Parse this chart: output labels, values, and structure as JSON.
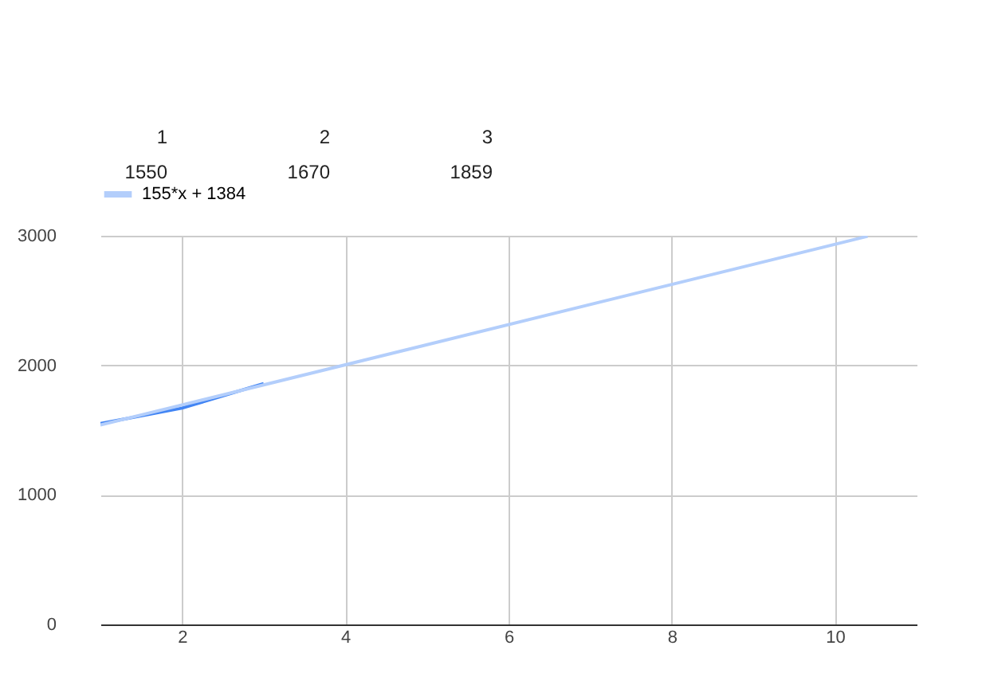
{
  "chart_data": {
    "type": "line",
    "annotations": [
      "1",
      "2",
      "3",
      "1550",
      "1670",
      "1859"
    ],
    "series": [
      {
        "color": "#4285f4",
        "x": [
          1,
          2,
          3
        ],
        "values": [
          1550,
          1670,
          1859
        ]
      },
      {
        "name": "155*x + 1384",
        "color": "#b3cefb",
        "x": [
          1,
          10.4
        ],
        "values": [
          1539,
          2996
        ]
      }
    ],
    "xlim": [
      1,
      11
    ],
    "xticks": [
      2,
      4,
      6,
      8,
      10
    ],
    "ylim": [
      0,
      3000
    ],
    "yticks": [
      0,
      1000,
      2000,
      3000
    ],
    "grid": true,
    "legend": "top",
    "marker": "none",
    "line_style": "solid"
  }
}
